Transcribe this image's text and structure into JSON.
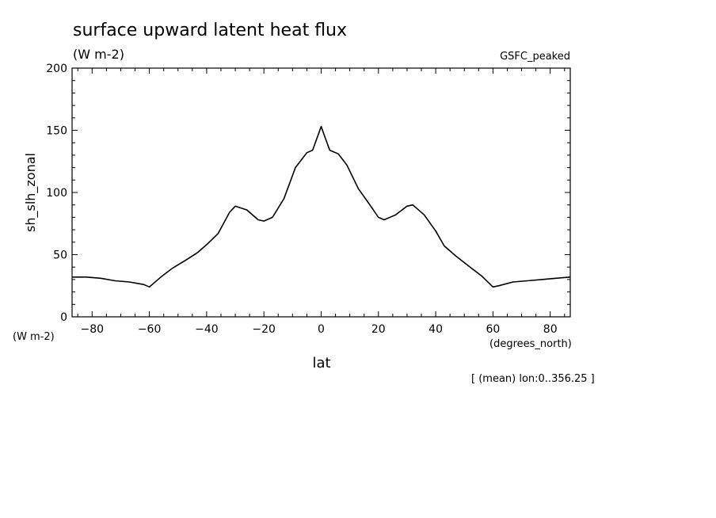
{
  "chart_data": {
    "type": "line",
    "title": "surface upward latent heat flux",
    "subtitle": "(W m-2)",
    "annotation_top_right": "GSFC_peaked",
    "xlabel": "lat",
    "x_units": "(degrees_north)",
    "ylabel": "sh_slh_zonal",
    "y_units": "(W m-2)",
    "footer_note": "[ (mean) lon:0..356.25 ]",
    "xlim": [
      -87,
      87
    ],
    "ylim": [
      0,
      200
    ],
    "x_ticks": [
      -80,
      -60,
      -40,
      -20,
      0,
      20,
      40,
      60,
      80
    ],
    "y_ticks": [
      0,
      50,
      100,
      150,
      200
    ],
    "grid": false,
    "series": [
      {
        "x": [
          -87,
          -82,
          -77,
          -72,
          -67,
          -62,
          -60,
          -56,
          -52,
          -47,
          -43,
          -40,
          -36,
          -32,
          -30,
          -26,
          -22,
          -20,
          -17,
          -13,
          -9,
          -5,
          -3,
          0,
          3,
          6,
          9,
          13,
          17,
          20,
          22,
          26,
          30,
          32,
          36,
          40,
          43,
          47,
          52,
          56,
          60,
          62,
          67,
          72,
          77,
          82,
          87
        ],
        "y": [
          32,
          32,
          31,
          29,
          28,
          26,
          24,
          32,
          39,
          46,
          52,
          58,
          67,
          84,
          89,
          86,
          78,
          77,
          80,
          95,
          120,
          132,
          134,
          153,
          134,
          131,
          122,
          103,
          90,
          80,
          78,
          82,
          89,
          90,
          82,
          69,
          57,
          49,
          40,
          33,
          24,
          25,
          28,
          29,
          30,
          31,
          32
        ]
      }
    ]
  }
}
